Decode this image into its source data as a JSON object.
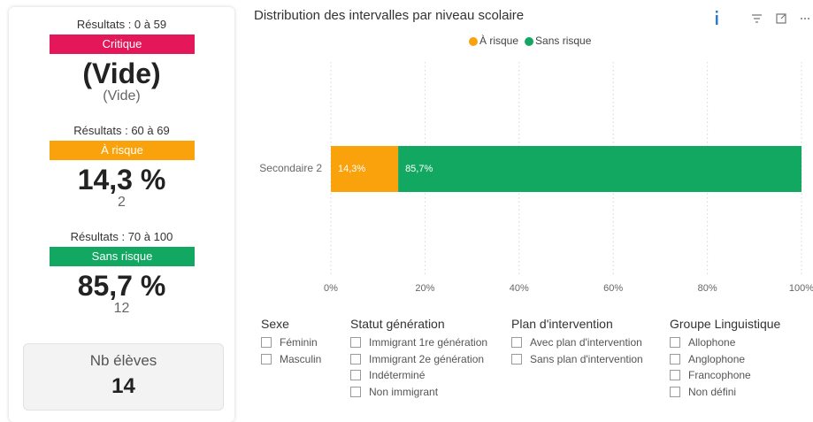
{
  "kpis": [
    {
      "range": "Résultats : 0 à 59",
      "band": "Critique",
      "color": "#e3175a",
      "value": "(Vide)",
      "count": "(Vide)"
    },
    {
      "range": "Résultats : 60 à 69",
      "band": "À risque",
      "color": "#f9a20b",
      "value": "14,3 %",
      "count": 2
    },
    {
      "range": "Résultats : 70 à 100",
      "band": "Sans risque",
      "color": "#12a862",
      "value": "85,7 %",
      "count": 12
    }
  ],
  "total": {
    "label": "Nb élèves",
    "value": 14
  },
  "chart_data": {
    "type": "bar",
    "orientation": "horizontal",
    "stacked": true,
    "title": "Distribution des intervalles par niveau scolaire",
    "categories": [
      "Secondaire 2"
    ],
    "series": [
      {
        "name": "À risque",
        "color": "#f9a20b",
        "values": [
          14.3
        ],
        "value_labels": [
          "14,3%"
        ]
      },
      {
        "name": "Sans risque",
        "color": "#12a862",
        "values": [
          85.7
        ],
        "value_labels": [
          "85,7%"
        ]
      }
    ],
    "xlim": [
      0,
      100
    ],
    "xticks": [
      {
        "value": 0,
        "label": "0%"
      },
      {
        "value": 20,
        "label": "20%"
      },
      {
        "value": 40,
        "label": "40%"
      },
      {
        "value": 60,
        "label": "60%"
      },
      {
        "value": 80,
        "label": "80%"
      },
      {
        "value": 100,
        "label": "100%"
      }
    ],
    "grid": true,
    "legend": "top"
  },
  "filters": [
    {
      "title": "Sexe",
      "options": [
        "Féminin",
        "Masculin"
      ]
    },
    {
      "title": "Statut génération",
      "options": [
        "Immigrant 1re génération",
        "Immigrant 2e génération",
        "Indéterminé",
        "Non immigrant"
      ]
    },
    {
      "title": "Plan d'intervention",
      "options": [
        "Avec plan d'intervention",
        "Sans plan d'intervention"
      ]
    },
    {
      "title": "Groupe Linguistique",
      "options": [
        "Allophone",
        "Anglophone",
        "Francophone",
        "Non défini"
      ]
    }
  ]
}
